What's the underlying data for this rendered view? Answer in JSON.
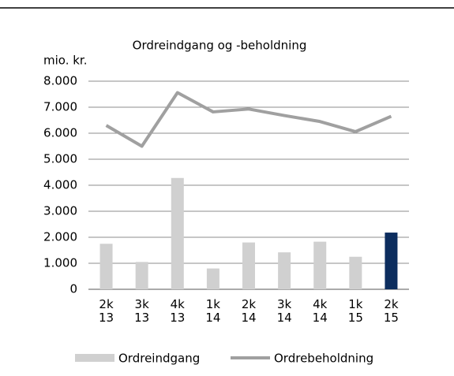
{
  "chart_data": {
    "type": "bar",
    "title": "Ordreindgang og -beholdning",
    "ylabel": "mio. kr.",
    "categories": [
      "2k 13",
      "3k 13",
      "4k 13",
      "1k 14",
      "2k 14",
      "3k 14",
      "4k 14",
      "1k 15",
      "2k 15"
    ],
    "series": [
      {
        "name": "Ordreindgang",
        "type": "bar",
        "color": "#d0d0d0",
        "colors": [
          "#d0d0d0",
          "#d0d0d0",
          "#d0d0d0",
          "#d0d0d0",
          "#d0d0d0",
          "#d0d0d0",
          "#d0d0d0",
          "#d0d0d0",
          "#0c2d5e"
        ],
        "values": [
          1750,
          1050,
          4280,
          800,
          1800,
          1420,
          1830,
          1250,
          2180
        ]
      },
      {
        "name": "Ordrebeholdning",
        "type": "line",
        "color": "#a0a0a0",
        "values": [
          6300,
          5500,
          7560,
          6820,
          6930,
          6680,
          6450,
          6060,
          6650
        ]
      }
    ],
    "ylim": [
      0,
      8000
    ],
    "yticks": [
      0,
      {
        "value": 1000,
        "label": "1.000"
      },
      {
        "value": 2000,
        "label": "2.000"
      },
      {
        "value": 3000,
        "label": "3.000"
      },
      {
        "value": 4000,
        "label": "4.000"
      },
      {
        "value": 5000,
        "label": "5.000"
      },
      {
        "value": 6000,
        "label": "6.000"
      },
      {
        "value": 7000,
        "label": "7.000"
      },
      {
        "value": 8000,
        "label": "8.000"
      }
    ],
    "grid": true,
    "legend": "bottom"
  }
}
